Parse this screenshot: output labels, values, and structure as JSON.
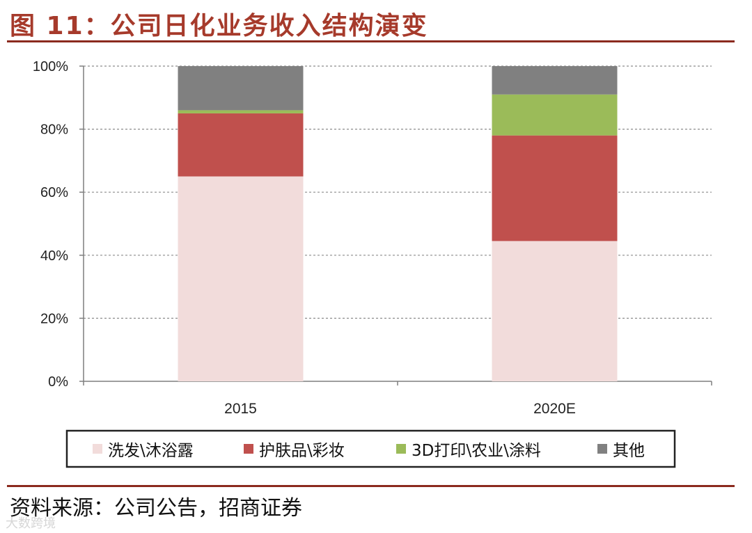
{
  "header": {
    "title": "图 11：公司日化业务收入结构演变"
  },
  "footer": {
    "source": "资料来源：公司公告，招商证券",
    "watermark": "大数跨境"
  },
  "chart_data": {
    "type": "bar",
    "stacked": true,
    "percent": true,
    "categories": [
      "2015",
      "2020E"
    ],
    "series": [
      {
        "name": "洗发\\沐浴露",
        "values": [
          65,
          44.5
        ],
        "color": "#f2dcdb"
      },
      {
        "name": "护肤品\\彩妆",
        "values": [
          20,
          33.5
        ],
        "color": "#c0504d"
      },
      {
        "name": "3D打印\\农业\\涂料",
        "values": [
          1,
          13
        ],
        "color": "#9bbb59"
      },
      {
        "name": "其他",
        "values": [
          14,
          9
        ],
        "color": "#808080"
      }
    ],
    "yticks": [
      "0%",
      "20%",
      "40%",
      "60%",
      "80%",
      "100%"
    ],
    "ylim": [
      0,
      100
    ],
    "grid": true,
    "legend_position": "bottom",
    "xlabel": "",
    "ylabel": ""
  }
}
